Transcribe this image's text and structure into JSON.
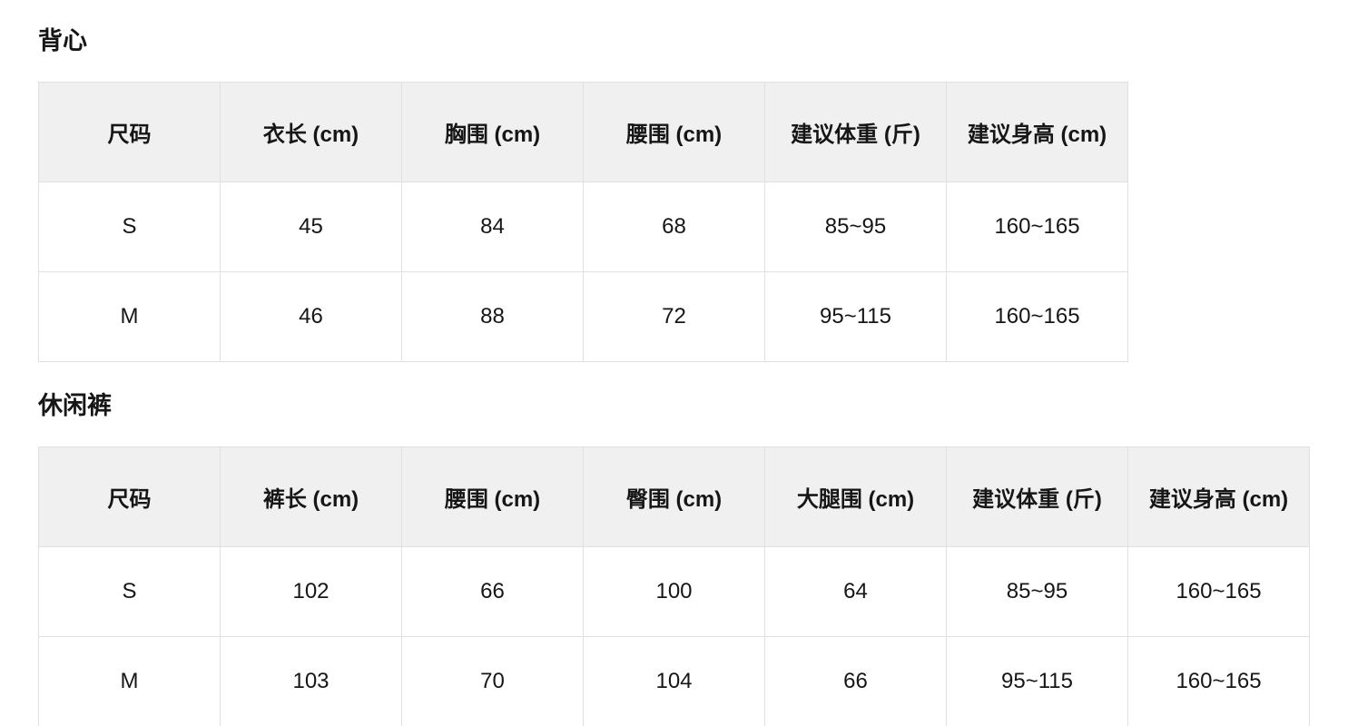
{
  "page": {
    "background_color": "#ffffff",
    "text_color": "#161616",
    "header_bg_color": "#f0f0f0",
    "border_color": "#e0e0e0"
  },
  "sections": [
    {
      "title": "背心",
      "columns": [
        "尺码",
        "衣长 (cm)",
        "胸围 (cm)",
        "腰围 (cm)",
        "建议体重 (斤)",
        "建议身高 (cm)"
      ],
      "rows": [
        [
          "S",
          "45",
          "84",
          "68",
          "85~95",
          "160~165"
        ],
        [
          "M",
          "46",
          "88",
          "72",
          "95~115",
          "160~165"
        ]
      ]
    },
    {
      "title": "休闲裤",
      "columns": [
        "尺码",
        "裤长 (cm)",
        "腰围 (cm)",
        "臀围 (cm)",
        "大腿围 (cm)",
        "建议体重 (斤)",
        "建议身高 (cm)"
      ],
      "rows": [
        [
          "S",
          "102",
          "66",
          "100",
          "64",
          "85~95",
          "160~165"
        ],
        [
          "M",
          "103",
          "70",
          "104",
          "66",
          "95~115",
          "160~165"
        ]
      ]
    }
  ]
}
